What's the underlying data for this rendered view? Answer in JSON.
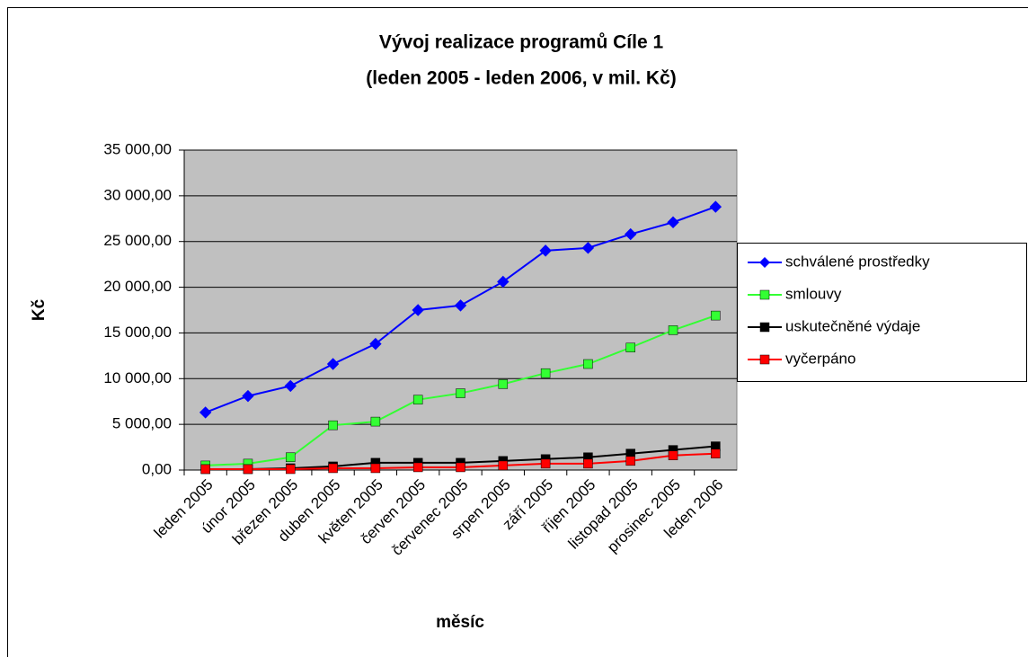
{
  "chart_data": {
    "type": "line",
    "title": "Vývoj realizace programů Cíle 1",
    "subtitle": "(leden 2005 - leden 2006, v mil. Kč)",
    "y_label": "Kč",
    "x_label": "měsíc",
    "categories": [
      "leden 2005",
      "únor 2005",
      "březen 2005",
      "duben 2005",
      "květen 2005",
      "červen 2005",
      "červenec 2005",
      "srpen 2005",
      "září 2005",
      "říjen 2005",
      "listopad 2005",
      "prosinec 2005",
      "leden 2006"
    ],
    "series": [
      {
        "name": "schválené prostředky",
        "color": "#0000ff",
        "marker": "diamond",
        "values": [
          6300,
          8100,
          9200,
          11600,
          13800,
          17500,
          18000,
          20600,
          24000,
          24300,
          25800,
          27100,
          28800
        ]
      },
      {
        "name": "smlouvy",
        "color": "#33ff33",
        "marker": "square",
        "values": [
          500,
          700,
          1400,
          4900,
          5300,
          7700,
          8400,
          9400,
          10600,
          11600,
          13400,
          15300,
          16900
        ]
      },
      {
        "name": "uskutečněné výdaje",
        "color": "#000000",
        "marker": "square",
        "values": [
          100,
          100,
          200,
          400,
          800,
          800,
          800,
          1000,
          1200,
          1400,
          1800,
          2200,
          2600
        ]
      },
      {
        "name": "vyčerpáno",
        "color": "#ff0000",
        "marker": "square",
        "values": [
          100,
          100,
          100,
          200,
          200,
          300,
          300,
          500,
          700,
          700,
          1000,
          1600,
          1800
        ]
      }
    ],
    "ylim": [
      0,
      35000
    ],
    "yticks": [
      {
        "value": 0,
        "label": "0,00"
      },
      {
        "value": 5000,
        "label": "5 000,00"
      },
      {
        "value": 10000,
        "label": "10 000,00"
      },
      {
        "value": 15000,
        "label": "15 000,00"
      },
      {
        "value": 20000,
        "label": "20 000,00"
      },
      {
        "value": 25000,
        "label": "25 000,00"
      },
      {
        "value": 30000,
        "label": "30 000,00"
      },
      {
        "value": 35000,
        "label": "35 000,00"
      }
    ],
    "grid": true,
    "legend": "right",
    "plot_background": "#c0c0c0"
  }
}
